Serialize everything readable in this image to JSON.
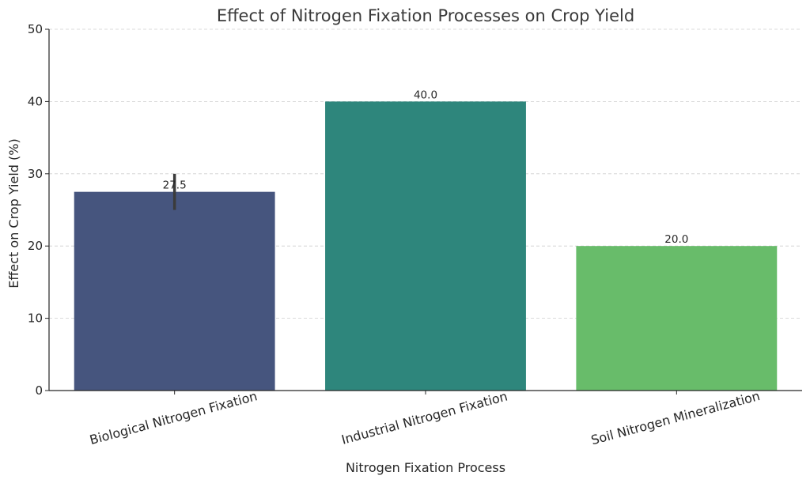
{
  "chart_data": {
    "type": "bar",
    "title": "Effect of Nitrogen Fixation Processes on Crop Yield",
    "xlabel": "Nitrogen Fixation Process",
    "ylabel": "Effect on Crop Yield (%)",
    "ylim": [
      0,
      50
    ],
    "yticks": [
      0,
      10,
      20,
      30,
      40,
      50
    ],
    "grid": true,
    "categories": [
      "Biological Nitrogen Fixation",
      "Industrial Nitrogen Fixation",
      "Soil Nitrogen Mineralization"
    ],
    "values": [
      27.5,
      40.0,
      20.0
    ],
    "data_labels": [
      "27.5",
      "40.0",
      "20.0"
    ],
    "error_bars": [
      [
        25.0,
        30.0
      ],
      null,
      null
    ],
    "colors": [
      "#46557e",
      "#2e867c",
      "#68bc6a"
    ]
  }
}
